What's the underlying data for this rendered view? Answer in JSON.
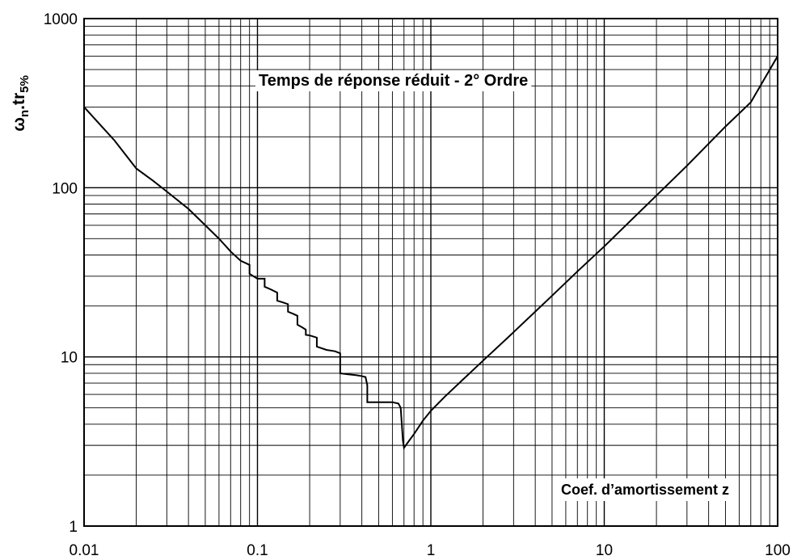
{
  "chart_data": {
    "type": "line",
    "title": "Temps de réponse réduit -  2° Ordre",
    "xlabel": "Coef.  d’amortissement z",
    "ylabel": {
      "main": "ω",
      "sub1": "n",
      "mid": ".tr",
      "sub2": "5%"
    },
    "xscale": "log",
    "yscale": "log",
    "xlim": [
      0.01,
      100
    ],
    "ylim": [
      1,
      1000
    ],
    "grid": true,
    "x_tick_labels": [
      "0.01",
      "0.1",
      "1",
      "10",
      "100"
    ],
    "y_tick_labels": [
      "1",
      "10",
      "100",
      "1000"
    ],
    "series": [
      {
        "x": [
          0.01,
          0.015,
          0.02,
          0.025,
          0.03,
          0.04,
          0.05,
          0.06,
          0.07,
          0.08,
          0.09,
          0.09,
          0.1,
          0.11,
          0.11,
          0.12,
          0.13,
          0.13,
          0.14,
          0.15,
          0.15,
          0.16,
          0.17,
          0.17,
          0.18,
          0.19,
          0.19,
          0.2,
          0.22,
          0.22,
          0.25,
          0.28,
          0.3,
          0.3,
          0.33,
          0.37,
          0.4,
          0.42,
          0.43,
          0.43,
          0.5,
          0.6,
          0.65,
          0.67,
          0.68,
          0.69,
          0.7,
          0.75,
          0.8,
          0.9,
          1.0,
          1.2,
          1.5,
          2,
          3,
          5,
          7,
          10,
          20,
          30,
          50,
          70,
          100
        ],
        "y": [
          300,
          190,
          130,
          110,
          95,
          75,
          60,
          50,
          42,
          37,
          35,
          31,
          29,
          29,
          26,
          25,
          24,
          21.5,
          21,
          20.5,
          18.5,
          18,
          17.5,
          15.5,
          15,
          14.5,
          13.5,
          13.4,
          13,
          11.5,
          11,
          10.8,
          10.5,
          8,
          7.9,
          7.8,
          7.7,
          7.6,
          6.8,
          5.4,
          5.4,
          5.4,
          5.3,
          5.0,
          4.0,
          3.2,
          2.9,
          3.2,
          3.5,
          4.2,
          4.8,
          5.8,
          7.2,
          9.5,
          14,
          23,
          32,
          45,
          90,
          135,
          230,
          320,
          600
        ]
      }
    ]
  }
}
